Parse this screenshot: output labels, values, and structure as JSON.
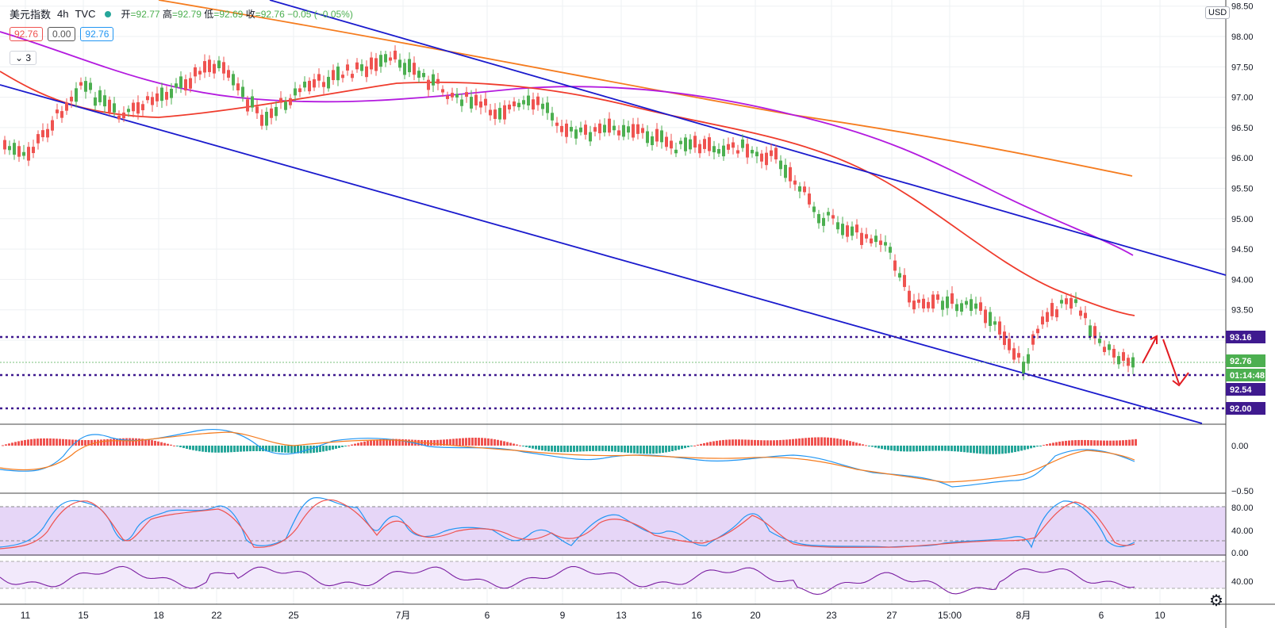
{
  "legend": {
    "symbol": "美元指数",
    "interval": "4h",
    "source": "TVC",
    "open_label": "开",
    "open": "92.77",
    "high_label": "高",
    "high": "92.79",
    "low_label": "低",
    "low": "92.69",
    "close_label": "收",
    "close": "92.76",
    "change": "−0.05 (−0.05%)"
  },
  "quote_boxes": {
    "bid": "92.76",
    "spread": "0.00",
    "ask": "92.76"
  },
  "indicators_collapsed": "3",
  "currency": "USD",
  "price_axis": {
    "ticks": [
      "98.50",
      "98.00",
      "97.50",
      "97.00",
      "96.50",
      "96.00",
      "95.50",
      "95.00",
      "94.50",
      "94.00",
      "93.50",
      "93.00"
    ],
    "badges": [
      {
        "text": "93.16",
        "color": "#3f1a8f"
      },
      {
        "text": "92.76",
        "color": "#4caf50"
      },
      {
        "text": "01:14:48",
        "color": "#4caf50"
      },
      {
        "text": "92.54",
        "color": "#3f1a8f"
      },
      {
        "text": "92.00",
        "color": "#3f1a8f"
      }
    ]
  },
  "macd_axis": {
    "ticks": [
      "0.00",
      "−0.50"
    ]
  },
  "stoch_axis": {
    "ticks": [
      "80.00",
      "40.00",
      "0.00"
    ]
  },
  "rsi_axis": {
    "ticks": [
      "40.00"
    ]
  },
  "time_axis": {
    "labels": [
      "11",
      "15",
      "18",
      "22",
      "25",
      "7月",
      "6",
      "9",
      "13",
      "16",
      "20",
      "23",
      "27",
      "15:00",
      "8月",
      "6",
      "10"
    ]
  },
  "colors": {
    "up": "#4caf50",
    "down": "#ef5350",
    "channel": "#1a1acd",
    "ma_red": "#ef3b2c",
    "ma_purple": "#b31adf",
    "ma_orange": "#f57c1f",
    "level_line": "#3f1a8f"
  },
  "chart_data": {
    "type": "candlestick",
    "series": [
      {
        "name": "美元指数",
        "ohlc_last": {
          "open": 92.77,
          "high": 92.79,
          "low": 92.69,
          "close": 92.76
        }
      }
    ],
    "levels": [
      93.16,
      92.54,
      92.0
    ],
    "ylim": [
      92.0,
      98.5
    ]
  }
}
